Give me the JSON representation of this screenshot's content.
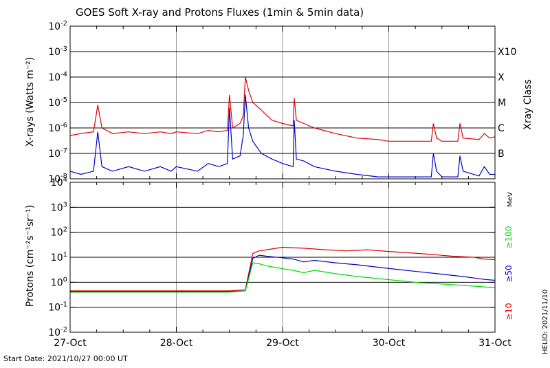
{
  "title": "GOES Soft X-ray and Protons Fluxes   (1min & 5min data)",
  "start_date": "Start Date: 2021/10/27 00:00 UT",
  "credit": "HELIO: 2021/11/10",
  "x_labels": [
    "27-Oct",
    "28-Oct",
    "29-Oct",
    "30-Oct",
    "31-Oct"
  ],
  "xray_class_label": "Xray Class",
  "xray_classes": [
    "X10",
    "X",
    "M",
    "C",
    "B"
  ],
  "mev_label": "MeV",
  "energy_labels": [
    "≥100",
    "≥50",
    "≥10"
  ],
  "colors": {
    "red": "#e00000",
    "blue": "#0000cc",
    "green": "#00dd00",
    "axis": "#000000",
    "grid": "#9a9a9a"
  },
  "chart_data": [
    {
      "type": "line",
      "ylabel": "X-rays (Watts m⁻²)",
      "yscale": "log",
      "ylim": [
        1e-08,
        0.01
      ],
      "xlim_days": [
        0,
        4
      ],
      "grid": true,
      "hgrid_decades": [
        -7,
        -6,
        -5,
        -4,
        -3
      ],
      "yticks": [
        {
          "base": "10",
          "exp": "-8"
        },
        {
          "base": "10",
          "exp": "-7"
        },
        {
          "base": "10",
          "exp": "-6"
        },
        {
          "base": "10",
          "exp": "-5"
        },
        {
          "base": "10",
          "exp": "-4"
        },
        {
          "base": "10",
          "exp": "-3"
        },
        {
          "base": "10",
          "exp": "-2"
        }
      ],
      "series": [
        {
          "color": "#e00000",
          "x": [
            0.0,
            0.1,
            0.22,
            0.26,
            0.3,
            0.4,
            0.55,
            0.7,
            0.85,
            0.95,
            1.0,
            1.2,
            1.3,
            1.4,
            1.48,
            1.5,
            1.53,
            1.6,
            1.63,
            1.65,
            1.68,
            1.72,
            1.8,
            1.9,
            2.0,
            2.1,
            2.11,
            2.13,
            2.2,
            2.3,
            2.5,
            2.7,
            2.9,
            3.0,
            3.2,
            3.4,
            3.42,
            3.45,
            3.5,
            3.65,
            3.67,
            3.7,
            3.85,
            3.9,
            3.95,
            4.0
          ],
          "y": [
            5e-07,
            6e-07,
            7e-07,
            8e-06,
            1e-06,
            6e-07,
            7e-07,
            6e-07,
            7e-07,
            6e-07,
            7e-07,
            6e-07,
            8e-07,
            7e-07,
            8e-07,
            2e-05,
            1e-06,
            1.5e-06,
            3e-06,
            0.0001,
            3e-05,
            1e-05,
            5e-06,
            2e-06,
            1.5e-06,
            1.2e-06,
            1.5e-05,
            2e-06,
            1.5e-06,
            1e-06,
            6e-07,
            4e-07,
            3.5e-07,
            3e-07,
            3e-07,
            3e-07,
            1.5e-06,
            4e-07,
            3e-07,
            3e-07,
            1.5e-06,
            4e-07,
            3.5e-07,
            6e-07,
            4e-07,
            4.5e-07
          ]
        },
        {
          "color": "#0000cc",
          "x": [
            0.0,
            0.1,
            0.22,
            0.26,
            0.3,
            0.4,
            0.55,
            0.7,
            0.85,
            0.95,
            1.0,
            1.2,
            1.3,
            1.4,
            1.48,
            1.5,
            1.53,
            1.6,
            1.63,
            1.65,
            1.68,
            1.72,
            1.8,
            1.9,
            2.0,
            2.1,
            2.11,
            2.13,
            2.2,
            2.3,
            2.5,
            2.7,
            2.9,
            3.0,
            3.2,
            3.4,
            3.42,
            3.45,
            3.5,
            3.65,
            3.67,
            3.7,
            3.85,
            3.9,
            3.95,
            4.0
          ],
          "y": [
            2e-08,
            1.5e-08,
            2e-08,
            7e-07,
            3e-08,
            2e-08,
            3e-08,
            2e-08,
            3e-08,
            2e-08,
            3e-08,
            2e-08,
            4e-08,
            3e-08,
            4e-08,
            6e-06,
            6e-08,
            8e-08,
            5e-07,
            2e-05,
            1e-06,
            3e-07,
            1e-07,
            6e-08,
            4e-08,
            3e-08,
            2e-06,
            6e-08,
            5e-08,
            3e-08,
            2e-08,
            1.5e-08,
            1.2e-08,
            1.2e-08,
            1.2e-08,
            1.2e-08,
            1e-07,
            2e-08,
            1.2e-08,
            1.2e-08,
            8e-08,
            2e-08,
            1.3e-08,
            3e-08,
            1.5e-08,
            1.5e-08
          ]
        }
      ]
    },
    {
      "type": "line",
      "ylabel": "Protons (cm⁻²s⁻¹sr⁻¹)",
      "yscale": "log",
      "ylim": [
        0.01,
        10000
      ],
      "xlim_days": [
        0,
        4
      ],
      "grid": true,
      "hgrid_decades": [
        -1,
        0,
        1,
        2,
        3
      ],
      "threshold": 10,
      "yticks": [
        {
          "base": "10",
          "exp": "-2"
        },
        {
          "base": "10",
          "exp": "-1"
        },
        {
          "base": "10",
          "exp": "0"
        },
        {
          "base": "10",
          "exp": "1"
        },
        {
          "base": "10",
          "exp": "2"
        },
        {
          "base": "10",
          "exp": "3"
        },
        {
          "base": "10",
          "exp": "4"
        }
      ],
      "series": [
        {
          "color": "#e00000",
          "x": [
            0.0,
            0.5,
            1.0,
            1.5,
            1.65,
            1.72,
            1.78,
            1.85,
            2.0,
            2.2,
            2.4,
            2.6,
            2.8,
            3.0,
            3.2,
            3.4,
            3.6,
            3.8,
            3.9,
            4.0
          ],
          "y": [
            0.45,
            0.45,
            0.45,
            0.45,
            0.5,
            14,
            18,
            20,
            25,
            23,
            20,
            18,
            20,
            17,
            15,
            13,
            11,
            10,
            8.5,
            8
          ],
          "name_hint": "≥10"
        },
        {
          "color": "#0000cc",
          "x": [
            0.0,
            0.5,
            1.0,
            1.5,
            1.65,
            1.72,
            1.78,
            1.85,
            2.0,
            2.1,
            2.2,
            2.3,
            2.5,
            2.7,
            2.9,
            3.1,
            3.3,
            3.5,
            3.7,
            3.9,
            4.0
          ],
          "y": [
            0.42,
            0.42,
            0.42,
            0.42,
            0.45,
            9,
            12,
            11,
            9.5,
            8.5,
            6.5,
            7.5,
            6,
            5,
            4,
            3.2,
            2.6,
            2.1,
            1.7,
            1.3,
            1.2
          ],
          "name_hint": "≥50"
        },
        {
          "color": "#00dd00",
          "x": [
            0.0,
            0.5,
            1.0,
            1.5,
            1.65,
            1.72,
            1.78,
            1.85,
            2.0,
            2.1,
            2.2,
            2.3,
            2.5,
            2.7,
            2.9,
            3.1,
            3.3,
            3.5,
            3.7,
            3.9,
            4.0
          ],
          "y": [
            0.4,
            0.4,
            0.4,
            0.4,
            0.45,
            6,
            5.5,
            4.5,
            3.5,
            3,
            2.4,
            3,
            2.2,
            1.7,
            1.4,
            1.15,
            0.95,
            0.85,
            0.75,
            0.65,
            0.6
          ],
          "name_hint": "≥100"
        }
      ]
    }
  ]
}
